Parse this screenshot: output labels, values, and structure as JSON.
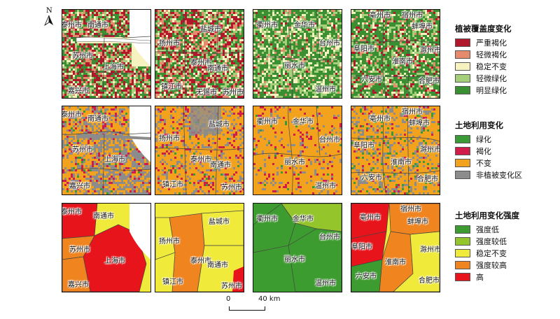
{
  "map_data": {
    "north_label": "N",
    "scale": {
      "start": "0",
      "end": "40 km"
    },
    "rows": [
      {
        "id": "vegetation",
        "legend": {
          "title": "植被覆盖度变化",
          "items": [
            {
              "label": "严重褐化",
              "color": "#b2182b"
            },
            {
              "label": "轻微褐化",
              "color": "#e58a6a"
            },
            {
              "label": "稳定不变",
              "color": "#f7f3c0"
            },
            {
              "label": "轻微绿化",
              "color": "#a6cf79"
            },
            {
              "label": "明显绿化",
              "color": "#3a8f32"
            }
          ]
        },
        "panels": [
          {
            "labels": [
              "泰州市",
              "南通市",
              "苏州市",
              "上海市",
              "嘉兴市"
            ]
          },
          {
            "labels": [
              "盐城市",
              "扬州市",
              "泰州市",
              "南通市",
              "镇江市",
              "无锡市",
              "苏州市"
            ]
          },
          {
            "labels": [
              "衢州市",
              "金华市",
              "台州市",
              "丽水市",
              "温州市"
            ]
          },
          {
            "labels": [
              "亳州市",
              "宿州市",
              "蚌埠市",
              "阜阳市",
              "滁州市",
              "淮南市",
              "六安市",
              "合肥市"
            ]
          }
        ]
      },
      {
        "id": "landuse",
        "legend": {
          "title": "土地利用变化",
          "items": [
            {
              "label": "绿化",
              "color": "#3a9a35"
            },
            {
              "label": "褐化",
              "color": "#d01c4b"
            },
            {
              "label": "不变",
              "color": "#f2a21d"
            },
            {
              "label": "非植被变化区",
              "color": "#8c8c8c"
            }
          ]
        },
        "panels": [
          {
            "labels": [
              "泰州市",
              "南通市",
              "苏州市",
              "上海市",
              "嘉兴市"
            ]
          },
          {
            "labels": [
              "扬州市",
              "盐城市",
              "泰州市",
              "南通市",
              "镇江市",
              "苏州市"
            ]
          },
          {
            "labels": [
              "衢州市",
              "金华市",
              "台州市",
              "丽水市",
              "温州市"
            ]
          },
          {
            "labels": [
              "亳州市",
              "宿州市",
              "蚌埠市",
              "阜阳市",
              "滁州市",
              "淮南市",
              "六安市",
              "合肥市"
            ]
          }
        ]
      },
      {
        "id": "intensity",
        "legend": {
          "title": "土地利用变化强度",
          "items": [
            {
              "label": "强度低",
              "color": "#3d9c2f"
            },
            {
              "label": "强度较低",
              "color": "#94c52a"
            },
            {
              "label": "稳定不变",
              "color": "#f0ea3a"
            },
            {
              "label": "强度较高",
              "color": "#f0841f"
            },
            {
              "label": "高",
              "color": "#e8141b"
            }
          ]
        },
        "panels": [
          {
            "labels": [
              "泰州市",
              "南通市",
              "苏州市",
              "上海市",
              "嘉兴市"
            ]
          },
          {
            "labels": [
              "盐城市",
              "扬州市",
              "泰州市",
              "南通市",
              "镇江市",
              "苏州市"
            ]
          },
          {
            "labels": [
              "衢州市",
              "金华市",
              "台州市",
              "丽水市",
              "温州市"
            ]
          },
          {
            "labels": [
              "亳州市",
              "宿州市",
              "蚌埠市",
              "阜阳市",
              "滁州市",
              "淮南市",
              "六安市",
              "合肥市"
            ]
          }
        ]
      }
    ]
  }
}
